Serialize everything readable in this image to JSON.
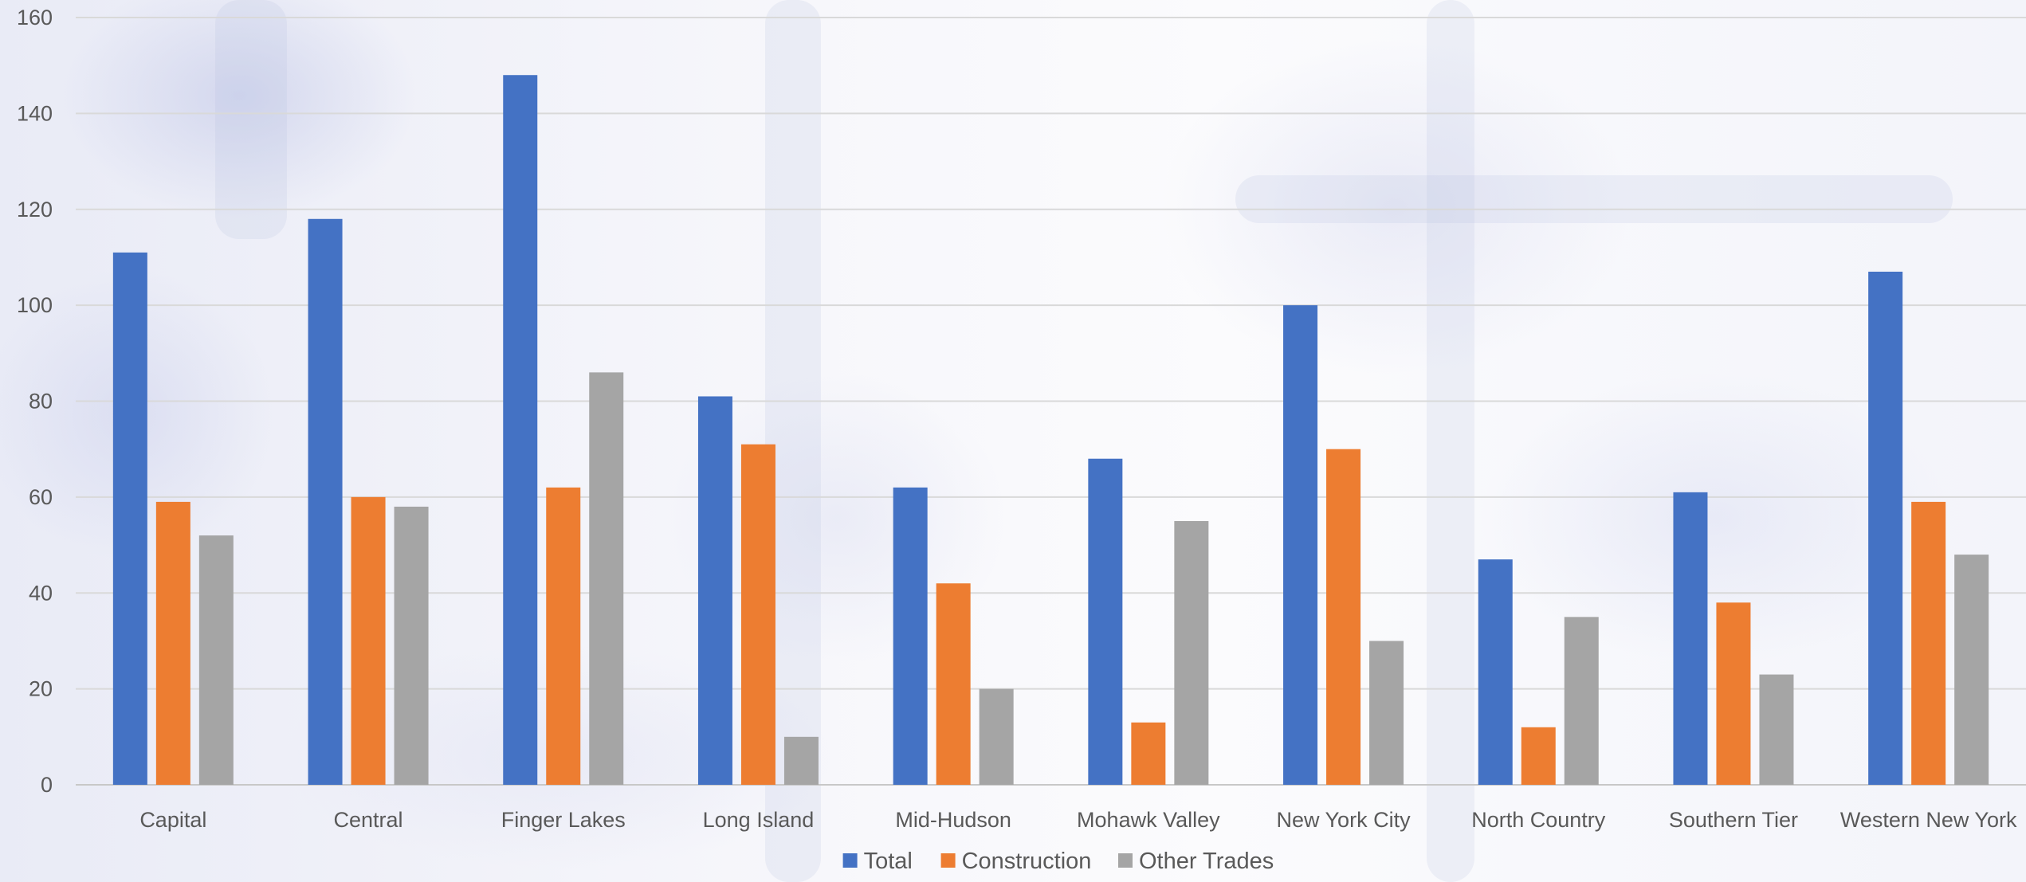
{
  "chart_data": {
    "type": "bar",
    "categories": [
      "Capital",
      "Central",
      "Finger Lakes",
      "Long Island",
      "Mid-Hudson",
      "Mohawk Valley",
      "New York City",
      "North Country",
      "Southern Tier",
      "Western New York"
    ],
    "series": [
      {
        "name": "Total",
        "color": "#4472C4",
        "values": [
          111,
          118,
          148,
          81,
          62,
          68,
          100,
          47,
          61,
          107
        ]
      },
      {
        "name": "Construction",
        "color": "#ED7D31",
        "values": [
          59,
          60,
          62,
          71,
          42,
          13,
          70,
          12,
          38,
          59
        ]
      },
      {
        "name": "Other Trades",
        "color": "#A5A5A5",
        "values": [
          52,
          58,
          86,
          10,
          20,
          55,
          30,
          35,
          23,
          48
        ]
      }
    ],
    "title": "",
    "xlabel": "",
    "ylabel": "",
    "ylim": [
      0,
      160
    ],
    "yticks": [
      0,
      20,
      40,
      60,
      80,
      100,
      120,
      140,
      160
    ],
    "grid": true,
    "legend_position": "bottom"
  }
}
